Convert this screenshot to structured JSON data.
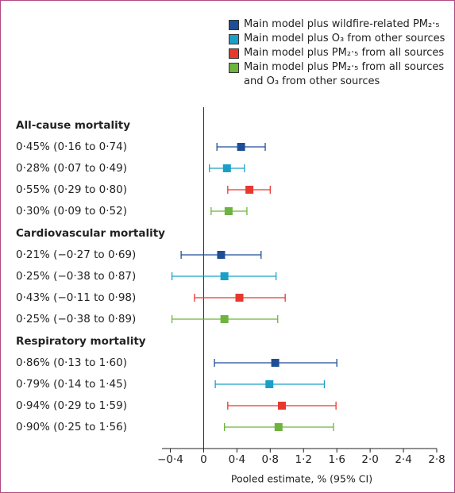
{
  "chart_data": {
    "type": "forest",
    "x_label": "Pooled estimate, % (95% CI)",
    "categories": [
      "All-cause mortality",
      "Cardiovascular mortality",
      "Respiratory mortality"
    ],
    "series": [
      {
        "name": "Main model plus wildfire-related PM₂·₅",
        "color": "#1f4e96",
        "values": [
          0.45,
          0.21,
          0.86
        ],
        "lower": [
          0.16,
          -0.27,
          0.13
        ],
        "upper": [
          0.74,
          0.69,
          1.6
        ],
        "value_labels": [
          "0·45% (0·16 to 0·74)",
          "0·21% (−0·27 to 0·69)",
          "0·86% (0·13 to 1·60)"
        ]
      },
      {
        "name": "Main model plus O₃ from other sources",
        "color": "#1aa0c8",
        "values": [
          0.28,
          0.25,
          0.79
        ],
        "lower": [
          0.07,
          -0.38,
          0.14
        ],
        "upper": [
          0.49,
          0.87,
          1.45
        ],
        "value_labels": [
          "0·28% (0·07 to 0·49)",
          "0·25% (−0·38 to 0·87)",
          "0·79% (0·14 to 1·45)"
        ]
      },
      {
        "name": "Main model plus PM₂·₅ from all sources",
        "color": "#e8382e",
        "values": [
          0.55,
          0.43,
          0.94
        ],
        "lower": [
          0.29,
          -0.11,
          0.29
        ],
        "upper": [
          0.8,
          0.98,
          1.59
        ],
        "value_labels": [
          "0·55% (0·29 to 0·80)",
          "0·43% (−0·11 to 0·98)",
          "0·94% (0·29 to 1·59)"
        ]
      },
      {
        "name": "Main model plus PM₂·₅ from all sources and O₃ from other sources",
        "color": "#6db33f",
        "values": [
          0.3,
          0.25,
          0.9
        ],
        "lower": [
          0.09,
          -0.38,
          0.25
        ],
        "upper": [
          0.52,
          0.89,
          1.56
        ],
        "value_labels": [
          "0·30% (0·09 to 0·52)",
          "0·25% (−0·38 to 0·89)",
          "0·90% (0·25 to 1·56)"
        ]
      }
    ],
    "xlim": [
      -0.5,
      2.8
    ],
    "xticks": [
      {
        "value": -0.4,
        "label": "−0·4"
      },
      0,
      {
        "value": 0.4,
        "label": "0·4"
      },
      {
        "value": 0.8,
        "label": "0·8"
      },
      {
        "value": 1.2,
        "label": "1·2"
      },
      {
        "value": 1.6,
        "label": "1·6"
      },
      {
        "value": 2.0,
        "label": "2·0"
      },
      {
        "value": 2.4,
        "label": "2·4"
      },
      {
        "value": 2.8,
        "label": "2·8"
      }
    ],
    "reference_line": 0
  }
}
